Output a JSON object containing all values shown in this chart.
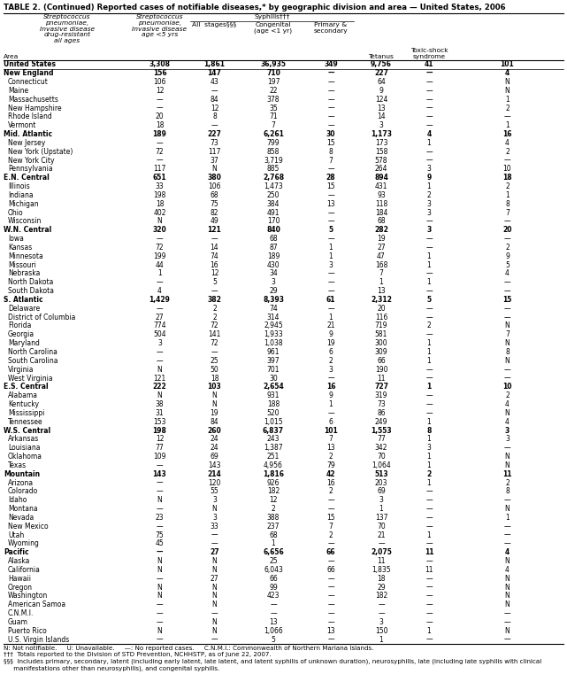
{
  "title": "TABLE 2. (Continued) Reported cases of notifiable diseases,* by geographic division and area — United States, 2006",
  "rows": [
    [
      "United States",
      "3,308",
      "1,861",
      "36,935",
      "349",
      "9,756",
      "41",
      "101"
    ],
    [
      "New England",
      "156",
      "147",
      "710",
      "—",
      "227",
      "—",
      "4"
    ],
    [
      "Connecticut",
      "106",
      "43",
      "197",
      "—",
      "64",
      "—",
      "N"
    ],
    [
      "Maine",
      "12",
      "—",
      "22",
      "—",
      "9",
      "—",
      "N"
    ],
    [
      "Massachusetts",
      "—",
      "84",
      "378",
      "—",
      "124",
      "—",
      "1"
    ],
    [
      "New Hampshire",
      "—",
      "12",
      "35",
      "—",
      "13",
      "—",
      "2"
    ],
    [
      "Rhode Island",
      "20",
      "8",
      "71",
      "—",
      "14",
      "—",
      "—"
    ],
    [
      "Vermont",
      "18",
      "—",
      "7",
      "—",
      "3",
      "—",
      "1"
    ],
    [
      "Mid. Atlantic",
      "189",
      "227",
      "6,261",
      "30",
      "1,173",
      "4",
      "16"
    ],
    [
      "New Jersey",
      "—",
      "73",
      "799",
      "15",
      "173",
      "1",
      "4"
    ],
    [
      "New York (Upstate)",
      "72",
      "117",
      "858",
      "8",
      "158",
      "—",
      "2"
    ],
    [
      "New York City",
      "—",
      "37",
      "3,719",
      "7",
      "578",
      "—",
      "—"
    ],
    [
      "Pennsylvania",
      "117",
      "N",
      "885",
      "—",
      "264",
      "3",
      "10"
    ],
    [
      "E.N. Central",
      "651",
      "380",
      "2,768",
      "28",
      "894",
      "9",
      "18"
    ],
    [
      "Illinois",
      "33",
      "106",
      "1,473",
      "15",
      "431",
      "1",
      "2"
    ],
    [
      "Indiana",
      "198",
      "68",
      "250",
      "—",
      "93",
      "2",
      "1"
    ],
    [
      "Michigan",
      "18",
      "75",
      "384",
      "13",
      "118",
      "3",
      "8"
    ],
    [
      "Ohio",
      "402",
      "82",
      "491",
      "—",
      "184",
      "3",
      "7"
    ],
    [
      "Wisconsin",
      "N",
      "49",
      "170",
      "—",
      "68",
      "—",
      "—"
    ],
    [
      "W.N. Central",
      "320",
      "121",
      "840",
      "5",
      "282",
      "3",
      "20"
    ],
    [
      "Iowa",
      "—",
      "—",
      "68",
      "—",
      "19",
      "—",
      "—"
    ],
    [
      "Kansas",
      "72",
      "14",
      "87",
      "1",
      "27",
      "—",
      "2"
    ],
    [
      "Minnesota",
      "199",
      "74",
      "189",
      "1",
      "47",
      "1",
      "9"
    ],
    [
      "Missouri",
      "44",
      "16",
      "430",
      "3",
      "168",
      "1",
      "5"
    ],
    [
      "Nebraska",
      "1",
      "12",
      "34",
      "—",
      "7",
      "—",
      "4"
    ],
    [
      "North Dakota",
      "—",
      "5",
      "3",
      "—",
      "1",
      "1",
      "—"
    ],
    [
      "South Dakota",
      "4",
      "—",
      "29",
      "—",
      "13",
      "—",
      "—"
    ],
    [
      "S. Atlantic",
      "1,429",
      "382",
      "8,393",
      "61",
      "2,312",
      "5",
      "15"
    ],
    [
      "Delaware",
      "—",
      "2",
      "74",
      "—",
      "20",
      "—",
      "—"
    ],
    [
      "District of Columbia",
      "27",
      "2",
      "314",
      "1",
      "116",
      "—",
      "—"
    ],
    [
      "Florida",
      "774",
      "72",
      "2,945",
      "21",
      "719",
      "2",
      "N"
    ],
    [
      "Georgia",
      "504",
      "141",
      "1,933",
      "9",
      "581",
      "—",
      "7"
    ],
    [
      "Maryland",
      "3",
      "72",
      "1,038",
      "19",
      "300",
      "1",
      "N"
    ],
    [
      "North Carolina",
      "—",
      "—",
      "961",
      "6",
      "309",
      "1",
      "8"
    ],
    [
      "South Carolina",
      "—",
      "25",
      "397",
      "2",
      "66",
      "1",
      "N"
    ],
    [
      "Virginia",
      "N",
      "50",
      "701",
      "3",
      "190",
      "—",
      "—"
    ],
    [
      "West Virginia",
      "121",
      "18",
      "30",
      "—",
      "11",
      "—",
      "—"
    ],
    [
      "E.S. Central",
      "222",
      "103",
      "2,654",
      "16",
      "727",
      "1",
      "10"
    ],
    [
      "Alabama",
      "N",
      "N",
      "931",
      "9",
      "319",
      "—",
      "2"
    ],
    [
      "Kentucky",
      "38",
      "N",
      "188",
      "1",
      "73",
      "—",
      "4"
    ],
    [
      "Mississippi",
      "31",
      "19",
      "520",
      "—",
      "86",
      "—",
      "N"
    ],
    [
      "Tennessee",
      "153",
      "84",
      "1,015",
      "6",
      "249",
      "1",
      "4"
    ],
    [
      "W.S. Central",
      "198",
      "260",
      "6,837",
      "101",
      "1,553",
      "8",
      "3"
    ],
    [
      "Arkansas",
      "12",
      "24",
      "243",
      "7",
      "77",
      "1",
      "3"
    ],
    [
      "Louisiana",
      "77",
      "24",
      "1,387",
      "13",
      "342",
      "3",
      "—"
    ],
    [
      "Oklahoma",
      "109",
      "69",
      "251",
      "2",
      "70",
      "1",
      "N"
    ],
    [
      "Texas",
      "—",
      "143",
      "4,956",
      "79",
      "1,064",
      "1",
      "N"
    ],
    [
      "Mountain",
      "143",
      "214",
      "1,816",
      "42",
      "513",
      "2",
      "11"
    ],
    [
      "Arizona",
      "—",
      "120",
      "926",
      "16",
      "203",
      "1",
      "2"
    ],
    [
      "Colorado",
      "—",
      "55",
      "182",
      "2",
      "69",
      "—",
      "8"
    ],
    [
      "Idaho",
      "N",
      "3",
      "12",
      "—",
      "3",
      "—",
      "—"
    ],
    [
      "Montana",
      "—",
      "N",
      "2",
      "—",
      "1",
      "—",
      "N"
    ],
    [
      "Nevada",
      "23",
      "3",
      "388",
      "15",
      "137",
      "—",
      "1"
    ],
    [
      "New Mexico",
      "—",
      "33",
      "237",
      "7",
      "70",
      "—",
      "—"
    ],
    [
      "Utah",
      "75",
      "—",
      "68",
      "2",
      "21",
      "1",
      "—"
    ],
    [
      "Wyoming",
      "45",
      "—",
      "1",
      "—",
      "—",
      "—",
      "—"
    ],
    [
      "Pacific",
      "—",
      "27",
      "6,656",
      "66",
      "2,075",
      "11",
      "4"
    ],
    [
      "Alaska",
      "N",
      "N",
      "25",
      "—",
      "11",
      "—",
      "N"
    ],
    [
      "California",
      "N",
      "N",
      "6,043",
      "66",
      "1,835",
      "11",
      "4"
    ],
    [
      "Hawaii",
      "—",
      "27",
      "66",
      "—",
      "18",
      "—",
      "N"
    ],
    [
      "Oregon",
      "N",
      "N",
      "99",
      "—",
      "29",
      "—",
      "N"
    ],
    [
      "Washington",
      "N",
      "N",
      "423",
      "—",
      "182",
      "—",
      "N"
    ],
    [
      "American Samoa",
      "—",
      "N",
      "—",
      "—",
      "—",
      "—",
      "N"
    ],
    [
      "C.N.M.I.",
      "—",
      "—",
      "—",
      "—",
      "—",
      "—",
      "—"
    ],
    [
      "Guam",
      "—",
      "N",
      "13",
      "—",
      "3",
      "—",
      "—"
    ],
    [
      "Puerto Rico",
      "N",
      "N",
      "1,066",
      "13",
      "150",
      "1",
      "N"
    ],
    [
      "U.S. Virgin Islands",
      "—",
      "—",
      "5",
      "—",
      "1",
      "—",
      "—"
    ]
  ],
  "bold_indices": [
    0,
    1,
    8,
    13,
    19,
    27,
    37,
    42,
    47,
    56
  ],
  "division_indices": [
    1,
    8,
    13,
    19,
    27,
    37,
    42,
    47,
    56
  ],
  "footnotes": [
    "N: Not notifiable.     U: Unavailable.     —: No reported cases.     C.N.M.I.: Commonwealth of Northern Mariana Islands.",
    "†††  Totals reported to the Division of STD Prevention, NCHHSTP, as of June 22, 2007.",
    "§§§  Includes primary, secondary, latent (including early latent, late latent, and latent syphilis of unknown duration), neurosyphilis, late (including late syphilis with clinical",
    "     manifestations other than neurosyphilis), and congenital syphilis."
  ],
  "col1_header": "Streptococcus\npneumoniae,\nInvasive disease\ndrug-resistant\nall ages",
  "col2_header": "Streptococcus\npneumoniae,\nInvasive disease\nage <5 yrs",
  "syphilis_header": "Syphilis†††",
  "col3_header": "All  stages§§§",
  "col4_header": "Congenital\n(age <1 yr)",
  "col5_header": "Primary &\nsecondary",
  "col6_header": "Tetanus",
  "col7_header": "Toxic-shock\nsyndrome",
  "area_header": "Area"
}
